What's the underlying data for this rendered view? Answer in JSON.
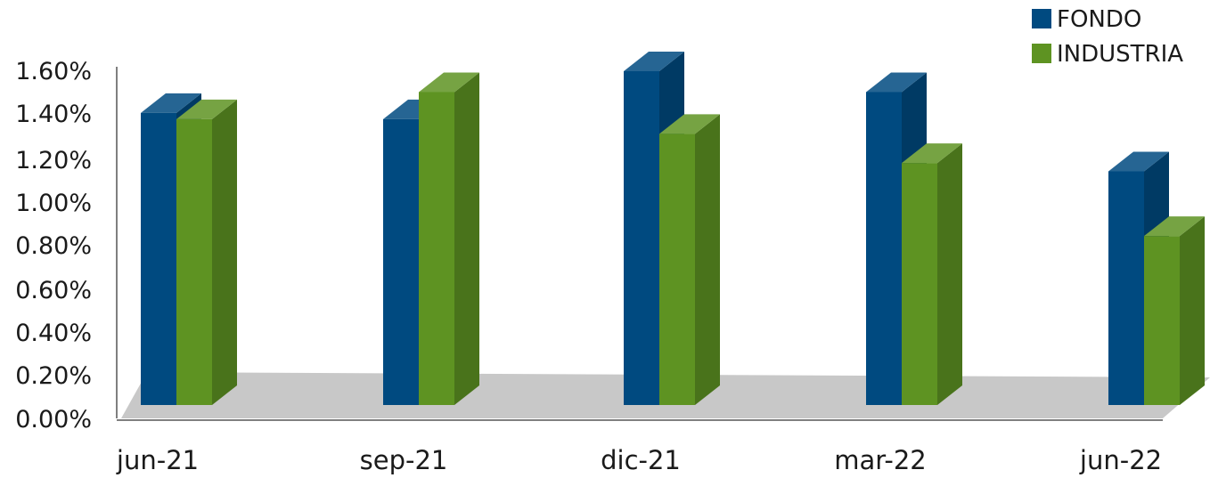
{
  "chart_data": {
    "type": "bar",
    "title": "",
    "xlabel": "",
    "ylabel": "",
    "categories": [
      "jun-21",
      "sep-21",
      "dic-21",
      "mar-22",
      "jun-22"
    ],
    "series": [
      {
        "name": "FONDO",
        "values": [
          1.4,
          1.37,
          1.6,
          1.5,
          1.12
        ]
      },
      {
        "name": "INDUSTRIA",
        "values": [
          1.37,
          1.5,
          1.3,
          1.16,
          0.81
        ]
      }
    ],
    "ylim": [
      0,
      1.6
    ],
    "yticks": [
      "0.00%",
      "0.20%",
      "0.40%",
      "0.60%",
      "0.80%",
      "1.00%",
      "1.20%",
      "1.40%",
      "1.60%"
    ],
    "style": "3d-column",
    "legend": "top-right",
    "grid": false,
    "colors": {
      "FONDO": "#004a80",
      "INDUSTRIA": "#5e9322",
      "floor": "#c8c8c8"
    }
  }
}
